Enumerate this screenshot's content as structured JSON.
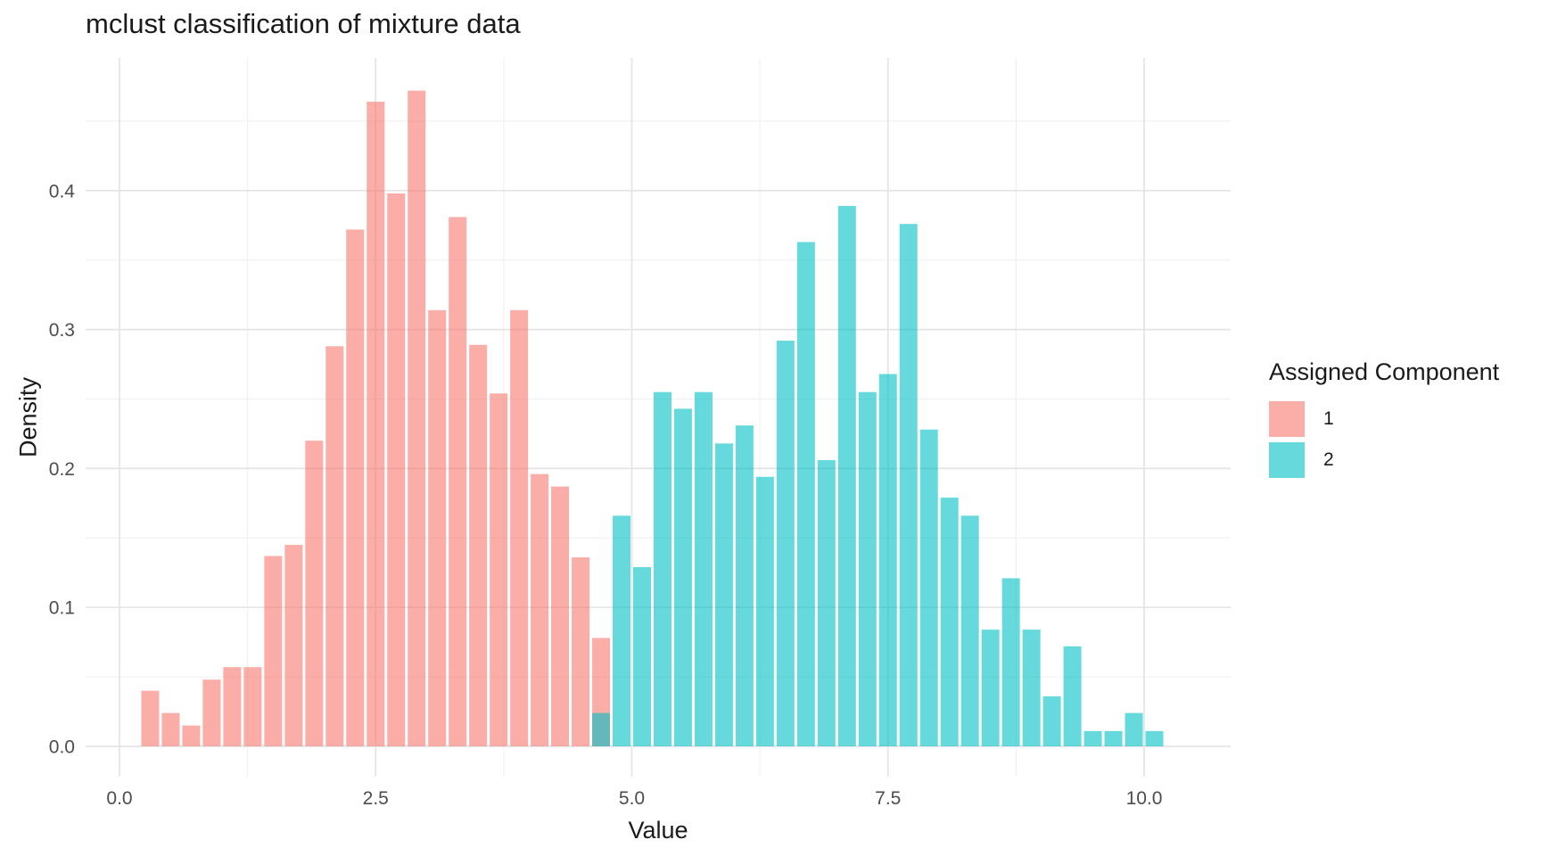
{
  "title": "mclust classification of mixture data",
  "axes": {
    "x": {
      "label": "Value",
      "tick_labels": [
        "0.0",
        "2.5",
        "5.0",
        "7.5",
        "10.0"
      ]
    },
    "y": {
      "label": "Density",
      "tick_labels": [
        "0.0",
        "0.1",
        "0.2",
        "0.3",
        "0.4"
      ]
    }
  },
  "legend": {
    "title": "Assigned Component",
    "items": [
      {
        "label": "1",
        "color": "#F8766D"
      },
      {
        "label": "2",
        "color": "#00BFC4"
      }
    ]
  },
  "style": {
    "background": "#FFFFFF",
    "grid_major": "#E4E4E4",
    "grid_minor": "#F0F0F0",
    "tick_text_color": "#4D4D4D",
    "text_color": "#1B1B1B",
    "bar_alpha": 0.6,
    "component1_fill": "#F8766D",
    "component2_fill": "#00BFC4",
    "overlap_observed": "#64B5B5"
  },
  "chart_data": {
    "type": "bar",
    "subtype": "overlaid-histogram",
    "title": "mclust classification of mixture data",
    "xlabel": "Value",
    "ylabel": "Density",
    "bin_width": 0.2,
    "xlim": [
      -0.33,
      10.83
    ],
    "ylim": [
      0,
      0.496
    ],
    "x_ticks": [
      0.0,
      2.5,
      5.0,
      7.5,
      10.0
    ],
    "y_ticks": [
      0.0,
      0.1,
      0.2,
      0.3,
      0.4
    ],
    "x_minor_gridlines": [
      1.25,
      3.75,
      6.25,
      8.75
    ],
    "y_minor_gridlines": [
      0.05,
      0.15,
      0.25,
      0.35,
      0.45
    ],
    "grid": true,
    "legend_position": "right",
    "legend_title": "Assigned Component",
    "series": [
      {
        "name": "1",
        "color": "#F8766D",
        "fill_alpha": 0.6,
        "bin_centers": [
          0.3,
          0.5,
          0.7,
          0.9,
          1.1,
          1.3,
          1.5,
          1.7,
          1.9,
          2.1,
          2.3,
          2.5,
          2.7,
          2.9,
          3.1,
          3.3,
          3.5,
          3.7,
          3.9,
          4.1,
          4.3,
          4.5,
          4.7
        ],
        "densities": [
          0.04,
          0.024,
          0.015,
          0.048,
          0.057,
          0.057,
          0.137,
          0.145,
          0.22,
          0.288,
          0.372,
          0.464,
          0.398,
          0.472,
          0.314,
          0.381,
          0.289,
          0.254,
          0.314,
          0.196,
          0.187,
          0.136,
          0.078
        ]
      },
      {
        "name": "2",
        "color": "#00BFC4",
        "fill_alpha": 0.6,
        "bin_centers": [
          4.7,
          4.9,
          5.1,
          5.3,
          5.5,
          5.7,
          5.9,
          6.1,
          6.3,
          6.5,
          6.7,
          6.9,
          7.1,
          7.3,
          7.5,
          7.7,
          7.9,
          8.1,
          8.3,
          8.5,
          8.7,
          8.9,
          9.1,
          9.3,
          9.5,
          9.7,
          9.9,
          10.1
        ],
        "densities": [
          0.024,
          0.166,
          0.129,
          0.255,
          0.243,
          0.255,
          0.218,
          0.231,
          0.194,
          0.292,
          0.363,
          0.206,
          0.389,
          0.255,
          0.268,
          0.376,
          0.228,
          0.179,
          0.166,
          0.084,
          0.121,
          0.084,
          0.036,
          0.072,
          0.011,
          0.011,
          0.024,
          0.011
        ]
      }
    ]
  }
}
